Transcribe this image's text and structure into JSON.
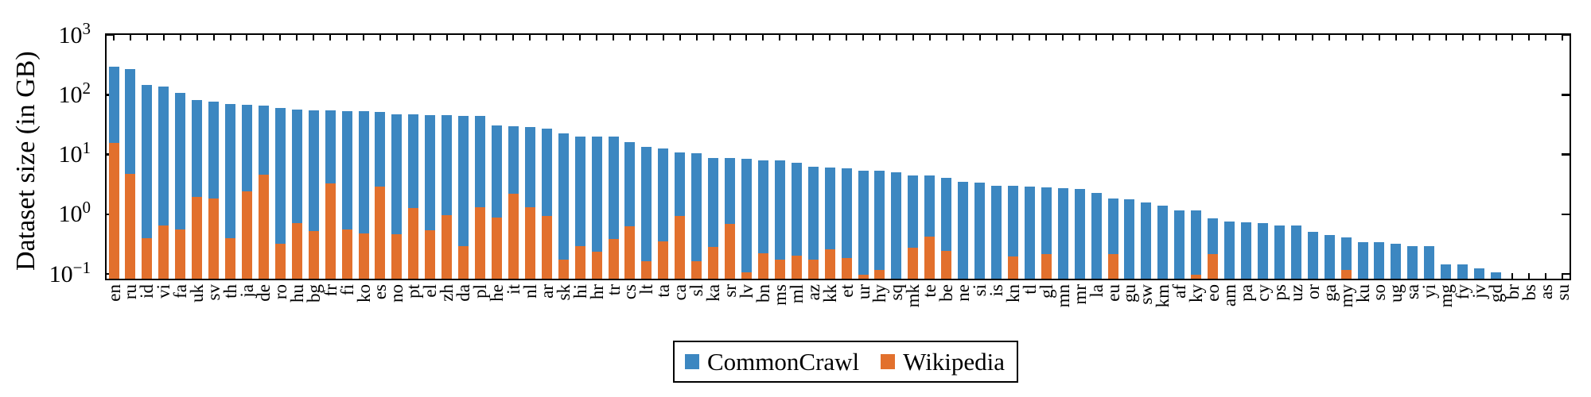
{
  "figure": {
    "ylabel": "Dataset size (in GB)"
  },
  "legend": {
    "items": [
      {
        "label": "CommonCrawl",
        "color": "#3c87c1"
      },
      {
        "label": "Wikipedia",
        "color": "#e2702d"
      }
    ]
  },
  "chart_data": {
    "type": "bar",
    "scale": "log-y",
    "grid": false,
    "title": "",
    "xlabel": "",
    "ylabel": "Dataset size (in GB)",
    "ylim": [
      0.086,
      1000
    ],
    "legend_position": "bottom-center",
    "yticks": [
      {
        "value": 1000,
        "base": "10",
        "exp": "3"
      },
      {
        "value": 100,
        "base": "10",
        "exp": "2"
      },
      {
        "value": 10,
        "base": "10",
        "exp": "1"
      },
      {
        "value": 1,
        "base": "10",
        "exp": "0"
      },
      {
        "value": 0.1,
        "base": "10",
        "exp": "−1"
      }
    ],
    "categories": [
      "en",
      "ru",
      "id",
      "vi",
      "fa",
      "uk",
      "sv",
      "th",
      "ja",
      "de",
      "ro",
      "hu",
      "bg",
      "fr",
      "fi",
      "ko",
      "es",
      "no",
      "pt",
      "el",
      "zh",
      "da",
      "pl",
      "he",
      "it",
      "nl",
      "ar",
      "sk",
      "hi",
      "hr",
      "tr",
      "cs",
      "lt",
      "ta",
      "ca",
      "sl",
      "ka",
      "sr",
      "lv",
      "bn",
      "ms",
      "ml",
      "az",
      "kk",
      "et",
      "ur",
      "hy",
      "sq",
      "mk",
      "te",
      "be",
      "ne",
      "si",
      "is",
      "kn",
      "tl",
      "gl",
      "mn",
      "mr",
      "la",
      "eu",
      "gu",
      "sw",
      "km",
      "af",
      "ky",
      "eo",
      "am",
      "pa",
      "cy",
      "ps",
      "uz",
      "or",
      "ga",
      "my",
      "ku",
      "so",
      "ug",
      "sa",
      "yi",
      "mg",
      "fy",
      "jv",
      "gd",
      "br",
      "bs",
      "as",
      "su"
    ],
    "series": [
      {
        "name": "CommonCrawl",
        "color": "#3c87c1",
        "units": "GB",
        "values": [
          300,
          280,
          150,
          140,
          112,
          85,
          78,
          72,
          69,
          67,
          61,
          58,
          57,
          56,
          54,
          54,
          53,
          49,
          49,
          47,
          47,
          46,
          45,
          32,
          31,
          30,
          28,
          23.5,
          20.6,
          20.6,
          20.6,
          16.8,
          14,
          12.8,
          11,
          10.9,
          9.1,
          9,
          8.6,
          8.3,
          8.1,
          7.6,
          6.4,
          6.2,
          6,
          5.6,
          5.5,
          5.2,
          4.6,
          4.6,
          4.2,
          3.6,
          3.5,
          3.1,
          3.1,
          3,
          2.9,
          2.85,
          2.7,
          2.35,
          1.9,
          1.85,
          1.6,
          1.45,
          1.2,
          1.2,
          0.88,
          0.78,
          0.76,
          0.73,
          0.67,
          0.67,
          0.52,
          0.46,
          0.42,
          0.35,
          0.35,
          0.33,
          0.3,
          0.3,
          0.15,
          0.15,
          0.13,
          0.11,
          0,
          0,
          0,
          0
        ]
      },
      {
        "name": "Wikipedia",
        "color": "#e2702d",
        "units": "GB",
        "values": [
          16,
          4.9,
          0.41,
          0.66,
          0.58,
          2.0,
          1.9,
          0.41,
          2.5,
          4.8,
          0.33,
          0.73,
          0.54,
          3.4,
          0.57,
          0.49,
          3.0,
          0.48,
          1.3,
          0.56,
          1.0,
          0.3,
          1.35,
          0.9,
          2.3,
          1.35,
          0.95,
          0.18,
          0.3,
          0.24,
          0.4,
          0.65,
          0.17,
          0.36,
          0.95,
          0.17,
          0.29,
          0.7,
          0.11,
          0.23,
          0.18,
          0.21,
          0.18,
          0.27,
          0.19,
          0.1,
          0.12,
          0,
          0.28,
          0.44,
          0.25,
          0,
          0,
          0,
          0.2,
          0,
          0.22,
          0,
          0,
          0,
          0.22,
          0,
          0,
          0,
          0,
          0.1,
          0.22,
          0,
          0,
          0,
          0,
          0,
          0,
          0,
          0.12,
          0,
          0,
          0,
          0,
          0,
          0,
          0,
          0,
          0,
          0,
          0,
          0,
          0
        ]
      }
    ]
  }
}
